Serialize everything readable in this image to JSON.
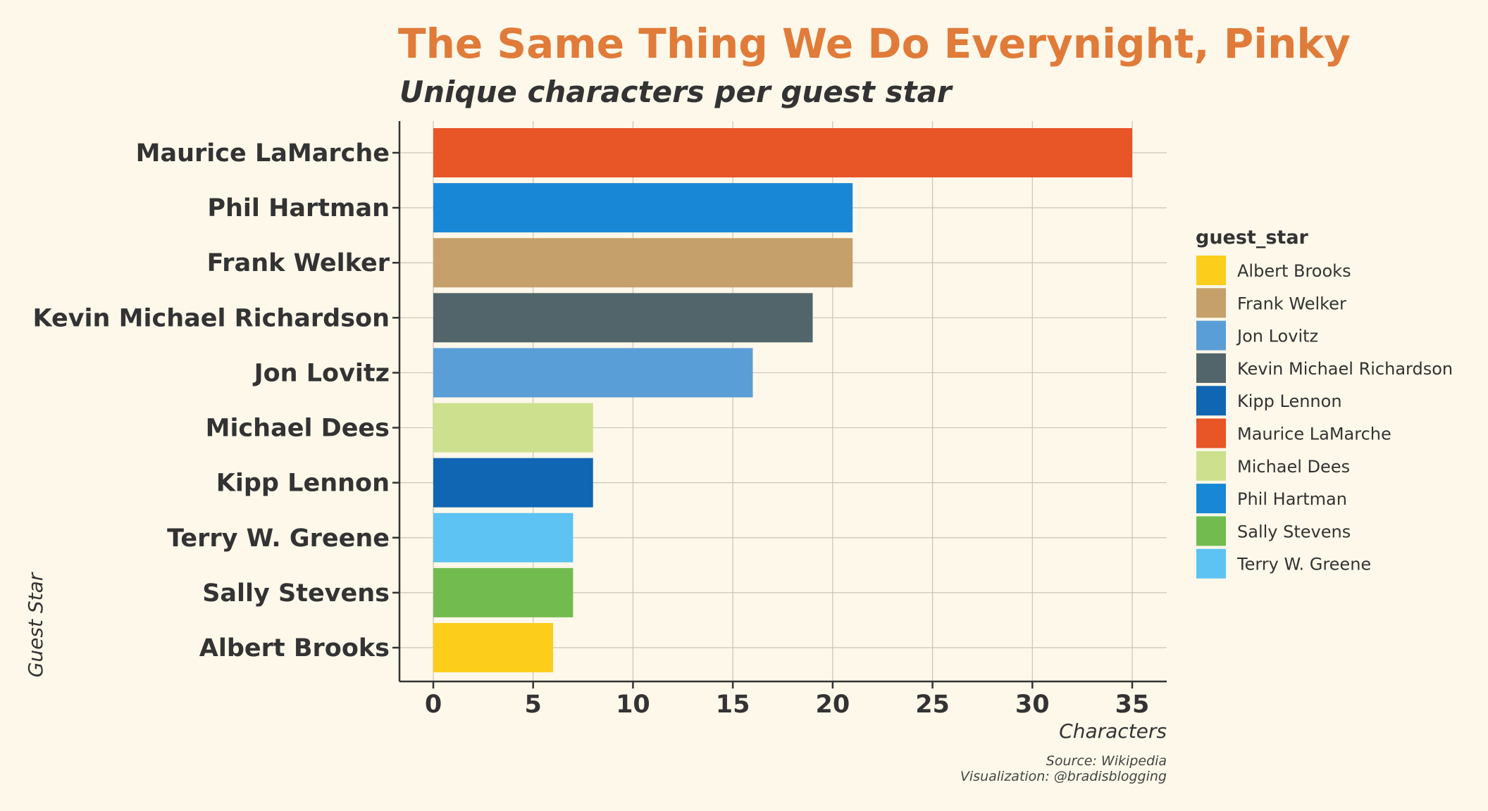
{
  "chart_data": {
    "type": "bar",
    "orientation": "horizontal",
    "title": "The Same Thing We Do Everynight, Pinky",
    "subtitle": "Unique characters per guest star",
    "xlabel": "Characters",
    "ylabel": "Guest Star",
    "xlim": [
      0,
      35
    ],
    "xticks": [
      "0",
      "5",
      "10",
      "15",
      "20",
      "25",
      "30",
      "35"
    ],
    "categories": [
      "Maurice LaMarche",
      "Phil Hartman",
      "Frank Welker",
      "Kevin Michael Richardson",
      "Jon Lovitz",
      "Michael Dees",
      "Kipp Lennon",
      "Terry W. Greene",
      "Sally Stevens",
      "Albert Brooks"
    ],
    "values": [
      35,
      21,
      21,
      19,
      16,
      8,
      8,
      7,
      7,
      6
    ],
    "colors": [
      "#e85527",
      "#1888d6",
      "#c6a06a",
      "#52656a",
      "#5a9ed7",
      "#cde08e",
      "#1166b3",
      "#5dc3f2",
      "#72bc4f",
      "#fccd1b"
    ],
    "legend": {
      "title": "guest_star",
      "position": "right",
      "entries": [
        "Albert Brooks",
        "Frank Welker",
        "Jon Lovitz",
        "Kevin Michael Richardson",
        "Kipp Lennon",
        "Maurice LaMarche",
        "Michael Dees",
        "Phil Hartman",
        "Sally Stevens",
        "Terry W. Greene"
      ],
      "colors": [
        "#fccd1b",
        "#c6a06a",
        "#5a9ed7",
        "#52656a",
        "#1166b3",
        "#e85527",
        "#cde08e",
        "#1888d6",
        "#72bc4f",
        "#5dc3f2"
      ]
    },
    "caption": [
      "Source: Wikipedia",
      "Visualization: @bradisblogging"
    ],
    "grid": true
  },
  "title_color": "#e07b39"
}
